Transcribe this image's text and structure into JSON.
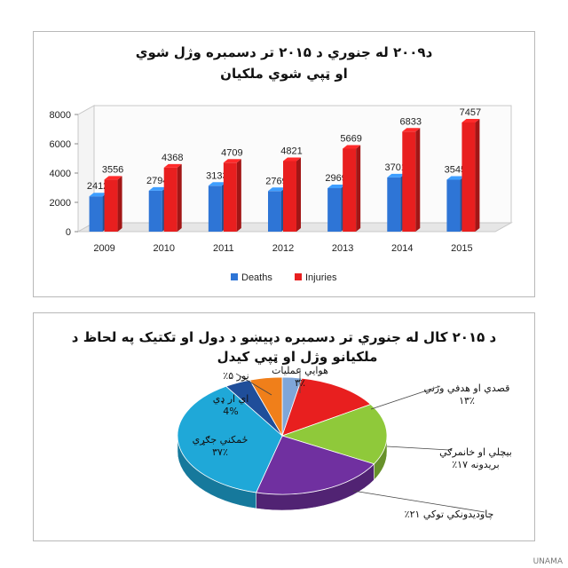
{
  "chart_data": [
    {
      "type": "bar",
      "title_line1": "د۲۰۰۹ له جنوري د ۲۰۱۵ تر دسمبره وژل شوي",
      "title_line2": "او ټپي شوي ملکيان",
      "categories": [
        "2009",
        "2010",
        "2011",
        "2012",
        "2013",
        "2014",
        "2015"
      ],
      "series": [
        {
          "name": "Deaths",
          "color": "#2e75d6",
          "values": [
            2412,
            2794,
            3133,
            2769,
            2969,
            3701,
            3545
          ]
        },
        {
          "name": "Injuries",
          "color": "#e81f1f",
          "values": [
            3556,
            4368,
            4709,
            4821,
            5669,
            6833,
            7457
          ]
        }
      ],
      "yticks": [
        "0",
        "2000",
        "4000",
        "6000",
        "8000"
      ],
      "ylim": [
        0,
        8000
      ],
      "legend": "bottom",
      "grid": false
    },
    {
      "type": "pie",
      "title_line1": "د ۲۰۱۵ کال له جنوري تر دسمبره دپيښو د دول او تکتيک په لحاظ د",
      "title_line2": "ملکيانو وژل او ټپي کيدل",
      "slices": [
        {
          "label_line1": "هوايي عمليات",
          "label_line2": "۳٪",
          "value": 3,
          "color": "#7fa6d8"
        },
        {
          "label_line1": "قصدي او هدفي وژني",
          "label_line2": "۱۳٪",
          "value": 13,
          "color": "#e81f1f"
        },
        {
          "label_line1": "بيچلي او خانمرګي",
          "label_line2": "بريدونه ۱۷٪",
          "value": 17,
          "color": "#8fc93a"
        },
        {
          "label_line1": "چاوديدونکي توکي ۲۱٪",
          "label_line2": "",
          "value": 21,
          "color": "#7030a0"
        },
        {
          "label_line1": "ځمکني جګړي",
          "label_line2": "۳۷٪",
          "value": 37,
          "color": "#1fa8d8"
        },
        {
          "label_line1": "اي ار ډي",
          "label_line2": "4%",
          "value": 4,
          "color": "#1f4e9a"
        },
        {
          "label_line1": "نور ۵٪",
          "label_line2": "",
          "value": 5,
          "color": "#f07f1a"
        }
      ]
    }
  ],
  "watermark": "UNAMA"
}
